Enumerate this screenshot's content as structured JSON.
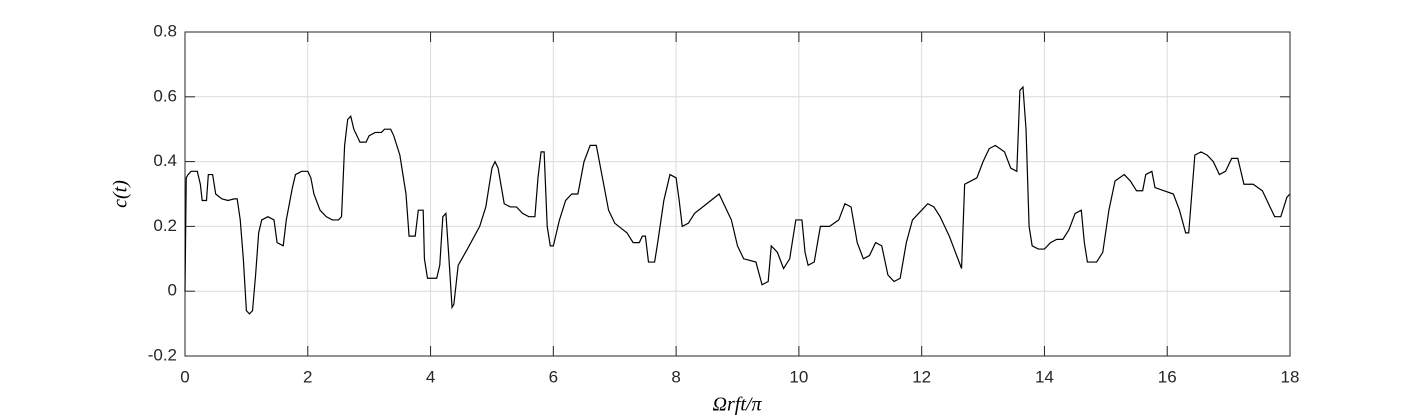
{
  "chart_data": {
    "type": "line",
    "x_label": "Ωrft/π",
    "y_label": "c(t)",
    "xlim": [
      0,
      18
    ],
    "xticks": [
      0,
      2,
      4,
      6,
      8,
      10,
      12,
      14,
      16,
      18
    ],
    "ylim": [
      -0.2,
      0.8
    ],
    "yticks": [
      -0.2,
      0,
      0.2,
      0.4,
      0.6,
      0.8
    ],
    "grid": true,
    "series": [
      {
        "color": "#000000",
        "x": [
          0,
          0.02,
          0.05,
          0.1,
          0.2,
          0.25,
          0.28,
          0.35,
          0.38,
          0.45,
          0.5,
          0.6,
          0.7,
          0.8,
          0.85,
          0.9,
          0.95,
          1.0,
          1.05,
          1.1,
          1.15,
          1.2,
          1.25,
          1.35,
          1.45,
          1.5,
          1.6,
          1.65,
          1.75,
          1.8,
          1.9,
          2.0,
          2.05,
          2.1,
          2.2,
          2.3,
          2.4,
          2.5,
          2.55,
          2.6,
          2.65,
          2.7,
          2.75,
          2.85,
          2.95,
          3.0,
          3.1,
          3.2,
          3.25,
          3.35,
          3.4,
          3.5,
          3.6,
          3.65,
          3.75,
          3.8,
          3.88,
          3.9,
          3.95,
          4.1,
          4.15,
          4.2,
          4.25,
          4.3,
          4.35,
          4.38,
          4.45,
          4.6,
          4.8,
          4.9,
          5.0,
          5.05,
          5.1,
          5.2,
          5.3,
          5.4,
          5.5,
          5.6,
          5.7,
          5.75,
          5.8,
          5.85,
          5.9,
          5.95,
          6.0,
          6.1,
          6.2,
          6.3,
          6.4,
          6.5,
          6.6,
          6.7,
          6.8,
          6.9,
          7.0,
          7.2,
          7.3,
          7.4,
          7.45,
          7.5,
          7.55,
          7.65,
          7.7,
          7.8,
          7.9,
          8.0,
          8.05,
          8.1,
          8.2,
          8.3,
          8.5,
          8.7,
          8.9,
          9.0,
          9.1,
          9.3,
          9.4,
          9.5,
          9.55,
          9.65,
          9.75,
          9.85,
          9.95,
          10.05,
          10.1,
          10.15,
          10.25,
          10.35,
          10.5,
          10.65,
          10.75,
          10.85,
          10.95,
          11.05,
          11.15,
          11.25,
          11.35,
          11.45,
          11.55,
          11.65,
          11.75,
          11.85,
          12.0,
          12.1,
          12.2,
          12.3,
          12.45,
          12.55,
          12.65,
          12.7,
          12.8,
          12.9,
          13.0,
          13.1,
          13.2,
          13.35,
          13.45,
          13.55,
          13.6,
          13.65,
          13.7,
          13.75,
          13.8,
          13.9,
          14.0,
          14.1,
          14.2,
          14.3,
          14.4,
          14.5,
          14.6,
          14.65,
          14.7,
          14.85,
          14.95,
          15.05,
          15.15,
          15.3,
          15.4,
          15.5,
          15.6,
          15.65,
          15.75,
          15.8,
          15.95,
          16.1,
          16.2,
          16.3,
          16.35,
          16.45,
          16.55,
          16.65,
          16.75,
          16.85,
          16.95,
          17.05,
          17.15,
          17.25,
          17.4,
          17.55,
          17.65,
          17.75,
          17.85,
          17.95,
          18.0
        ],
        "values": [
          0,
          0.35,
          0.36,
          0.37,
          0.37,
          0.33,
          0.28,
          0.28,
          0.36,
          0.36,
          0.3,
          0.285,
          0.28,
          0.285,
          0.285,
          0.22,
          0.1,
          -0.06,
          -0.07,
          -0.06,
          0.05,
          0.18,
          0.22,
          0.23,
          0.22,
          0.15,
          0.14,
          0.22,
          0.32,
          0.36,
          0.37,
          0.37,
          0.35,
          0.3,
          0.25,
          0.23,
          0.22,
          0.22,
          0.23,
          0.45,
          0.53,
          0.54,
          0.5,
          0.46,
          0.46,
          0.48,
          0.49,
          0.49,
          0.5,
          0.5,
          0.48,
          0.42,
          0.3,
          0.17,
          0.17,
          0.25,
          0.25,
          0.1,
          0.04,
          0.04,
          0.08,
          0.23,
          0.24,
          0.1,
          -0.05,
          -0.04,
          0.08,
          0.13,
          0.2,
          0.26,
          0.38,
          0.4,
          0.38,
          0.27,
          0.26,
          0.26,
          0.24,
          0.23,
          0.23,
          0.35,
          0.43,
          0.43,
          0.2,
          0.14,
          0.14,
          0.22,
          0.28,
          0.3,
          0.3,
          0.4,
          0.45,
          0.45,
          0.35,
          0.25,
          0.21,
          0.18,
          0.15,
          0.15,
          0.17,
          0.17,
          0.09,
          0.09,
          0.15,
          0.28,
          0.36,
          0.35,
          0.28,
          0.2,
          0.21,
          0.24,
          0.27,
          0.3,
          0.22,
          0.14,
          0.1,
          0.09,
          0.02,
          0.03,
          0.14,
          0.12,
          0.07,
          0.1,
          0.22,
          0.22,
          0.12,
          0.08,
          0.09,
          0.2,
          0.2,
          0.22,
          0.27,
          0.26,
          0.15,
          0.1,
          0.11,
          0.15,
          0.14,
          0.05,
          0.03,
          0.04,
          0.15,
          0.22,
          0.25,
          0.27,
          0.26,
          0.23,
          0.17,
          0.12,
          0.07,
          0.33,
          0.34,
          0.35,
          0.4,
          0.44,
          0.45,
          0.43,
          0.38,
          0.37,
          0.62,
          0.63,
          0.5,
          0.2,
          0.14,
          0.13,
          0.13,
          0.15,
          0.16,
          0.16,
          0.19,
          0.24,
          0.25,
          0.15,
          0.09,
          0.09,
          0.12,
          0.25,
          0.34,
          0.36,
          0.34,
          0.31,
          0.31,
          0.36,
          0.37,
          0.32,
          0.31,
          0.3,
          0.25,
          0.18,
          0.18,
          0.42,
          0.43,
          0.42,
          0.4,
          0.36,
          0.37,
          0.41,
          0.41,
          0.33,
          0.33,
          0.31,
          0.27,
          0.23,
          0.23,
          0.29,
          0.3
        ]
      }
    ]
  }
}
